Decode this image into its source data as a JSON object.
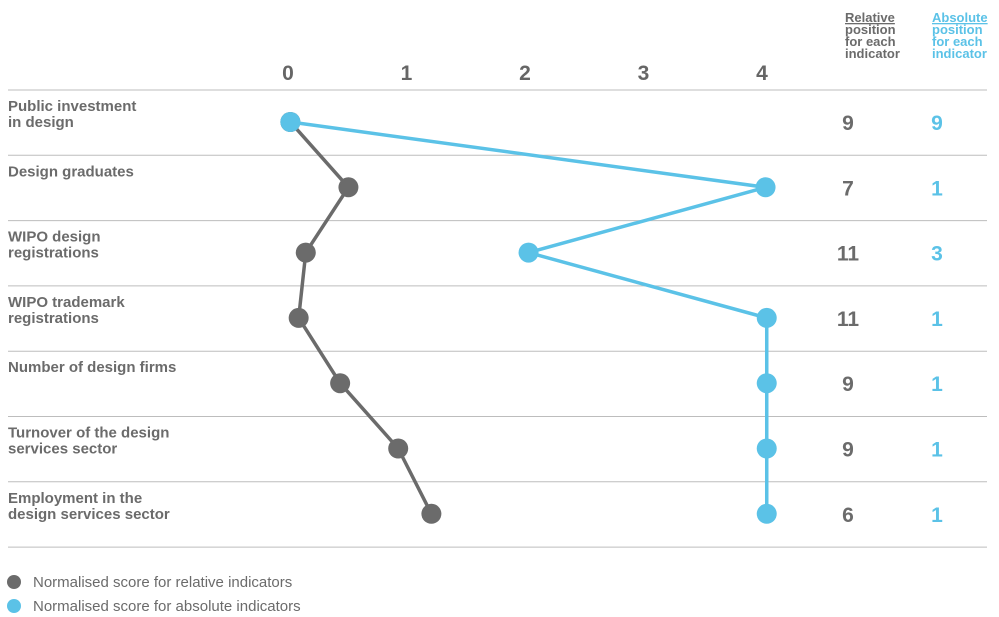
{
  "chart_data": {
    "type": "line",
    "orientation": "horizontal",
    "x_ticks": [
      "0",
      "1",
      "2",
      "3",
      "4"
    ],
    "xlim": [
      0,
      4
    ],
    "categories": [
      [
        "Public investment",
        "in design"
      ],
      [
        "Design graduates"
      ],
      [
        "WIPO design",
        "registrations"
      ],
      [
        "WIPO trademark",
        "registrations"
      ],
      [
        "Number of design firms"
      ],
      [
        "Turnover of the design",
        "services sector"
      ],
      [
        "Employment in the",
        "design services sector"
      ]
    ],
    "series": [
      {
        "name": "Normalised score for relative indicators",
        "color": "#6b6b6b",
        "values": [
          0.02,
          0.51,
          0.15,
          0.09,
          0.44,
          0.93,
          1.21
        ]
      },
      {
        "name": "Normalised score for absolute indicators",
        "color": "#5bc2e7",
        "values": [
          0.02,
          4.03,
          2.03,
          4.04,
          4.04,
          4.04,
          4.04
        ]
      }
    ],
    "position_columns": [
      {
        "header": [
          "Relative",
          "position",
          "for each",
          "indicator"
        ],
        "color": "#6b6b6b",
        "values": [
          "9",
          "7",
          "11",
          "11",
          "9",
          "9",
          "6"
        ]
      },
      {
        "header": [
          "Absolute",
          "position",
          "for each",
          "indicator"
        ],
        "color": "#5bc2e7",
        "values": [
          "9",
          "1",
          "3",
          "1",
          "1",
          "1",
          "1"
        ]
      }
    ],
    "legend": {
      "placement": "bottom-left",
      "items": [
        {
          "label": "Normalised score for relative indicators",
          "color": "#6b6b6b"
        },
        {
          "label": "Normalised score for absolute indicators",
          "color": "#5bc2e7"
        }
      ]
    },
    "grid": "horizontal row separators"
  }
}
